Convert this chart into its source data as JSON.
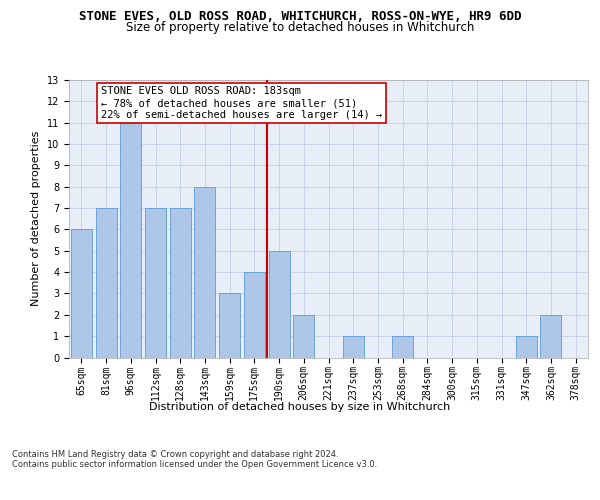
{
  "title": "STONE EVES, OLD ROSS ROAD, WHITCHURCH, ROSS-ON-WYE, HR9 6DD",
  "subtitle": "Size of property relative to detached houses in Whitchurch",
  "xlabel": "Distribution of detached houses by size in Whitchurch",
  "ylabel": "Number of detached properties",
  "categories": [
    "65sqm",
    "81sqm",
    "96sqm",
    "112sqm",
    "128sqm",
    "143sqm",
    "159sqm",
    "175sqm",
    "190sqm",
    "206sqm",
    "221sqm",
    "237sqm",
    "253sqm",
    "268sqm",
    "284sqm",
    "300sqm",
    "315sqm",
    "331sqm",
    "347sqm",
    "362sqm",
    "378sqm"
  ],
  "values": [
    6,
    7,
    11,
    7,
    7,
    8,
    3,
    4,
    5,
    2,
    0,
    1,
    0,
    1,
    0,
    0,
    0,
    0,
    1,
    2,
    0
  ],
  "bar_color": "#aec6e8",
  "bar_edge_color": "#5b9bd5",
  "ref_line_index": 8,
  "ref_line_color": "#cc0000",
  "annotation_text": "STONE EVES OLD ROSS ROAD: 183sqm\n← 78% of detached houses are smaller (51)\n22% of semi-detached houses are larger (14) →",
  "annotation_box_color": "#ffffff",
  "annotation_box_edge": "#cc0000",
  "ylim": [
    0,
    13
  ],
  "yticks": [
    0,
    1,
    2,
    3,
    4,
    5,
    6,
    7,
    8,
    9,
    10,
    11,
    12,
    13
  ],
  "grid_color": "#c8d4e8",
  "background_color": "#e8eef8",
  "footer": "Contains HM Land Registry data © Crown copyright and database right 2024.\nContains public sector information licensed under the Open Government Licence v3.0.",
  "title_fontsize": 9,
  "subtitle_fontsize": 8.5,
  "tick_fontsize": 7,
  "ylabel_fontsize": 8,
  "xlabel_fontsize": 8,
  "annotation_fontsize": 7.5,
  "footer_fontsize": 6
}
